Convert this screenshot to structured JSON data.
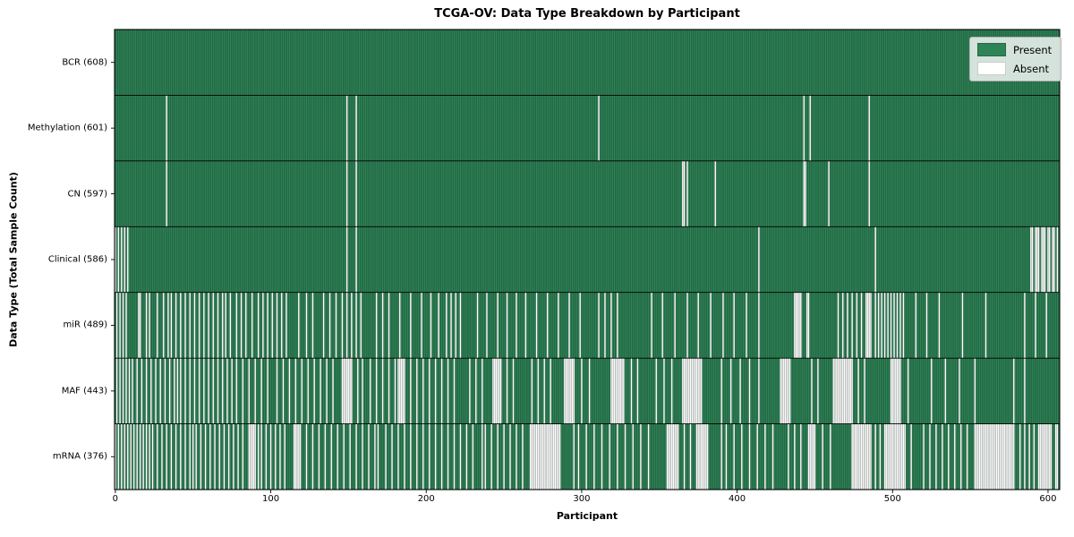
{
  "title": "TCGA-OV: Data Type Breakdown by Participant",
  "xlabel": "Participant",
  "ylabel": "Data Type (Total Sample Count)",
  "legend": {
    "present_label": "Present",
    "absent_label": "Absent"
  },
  "colors": {
    "present": "#2e8457",
    "present_edge_alpha": "rgba(0,0,0,0.38)",
    "absent": "#ffffff",
    "separator": "#000000",
    "spine": "#000000"
  },
  "chart_data": {
    "type": "heatmap",
    "subtype": "presence-absence-matrix",
    "n_participants": 608,
    "x_ticks": [
      0,
      100,
      200,
      300,
      400,
      500,
      600
    ],
    "legend_position": "upper right",
    "grid": "horizontal-row-separators",
    "rows": [
      {
        "label": "BCR (608)",
        "name": "BCR",
        "present_count": 608,
        "absent": []
      },
      {
        "label": "Methylation (601)",
        "name": "Methylation",
        "present_count": 601,
        "absent": [
          33,
          149,
          155,
          311,
          443,
          447,
          485
        ]
      },
      {
        "label": "CN (597)",
        "name": "CN",
        "present_count": 597,
        "absent": [
          33,
          149,
          155,
          365,
          366,
          368,
          386,
          443,
          444,
          459,
          485
        ]
      },
      {
        "label": "Clinical (586)",
        "name": "Clinical",
        "present_count": 586,
        "absent": [
          0,
          2,
          4,
          6,
          8,
          149,
          155,
          414,
          489,
          [
            589,
            590
          ],
          592,
          593,
          594,
          596,
          597,
          598,
          600,
          601,
          603,
          604,
          606
        ]
      },
      {
        "label": "miR (489)",
        "name": "miR",
        "present_count": 489,
        "absent": [
          1,
          3,
          5,
          7,
          15,
          16,
          20,
          22,
          27,
          31,
          34,
          36,
          39,
          42,
          45,
          48,
          51,
          54,
          57,
          60,
          63,
          66,
          69,
          71,
          74,
          78,
          81,
          84,
          88,
          92,
          95,
          98,
          101,
          104,
          107,
          110,
          118,
          123,
          127,
          134,
          138,
          142,
          146,
          149,
          152,
          155,
          158,
          168,
          172,
          176,
          183,
          190,
          197,
          203,
          208,
          213,
          216,
          219,
          222,
          233,
          239,
          246,
          252,
          258,
          264,
          271,
          278,
          285,
          292,
          299,
          311,
          315,
          319,
          323,
          345,
          352,
          360,
          368,
          375,
          383,
          391,
          398,
          406,
          414,
          [
            437,
            441
          ],
          445,
          446,
          465,
          468,
          471,
          474,
          477,
          480,
          [
            483,
            486
          ],
          489,
          491,
          493,
          495,
          497,
          499,
          501,
          503,
          505,
          507,
          515,
          522,
          530,
          545,
          560,
          585,
          592,
          599
        ]
      },
      {
        "label": "MAF (443)",
        "name": "MAF",
        "present_count": 443,
        "absent": [
          1,
          3,
          5,
          7,
          9,
          11,
          14,
          17,
          20,
          23,
          26,
          29,
          32,
          35,
          38,
          40,
          42,
          45,
          48,
          51,
          54,
          57,
          60,
          63,
          66,
          69,
          72,
          75,
          78,
          82,
          86,
          90,
          94,
          98,
          104,
          108,
          112,
          116,
          120,
          124,
          128,
          132,
          136,
          140,
          [
            146,
            152
          ],
          156,
          159,
          164,
          168,
          172,
          176,
          180,
          [
            182,
            186
          ],
          190,
          194,
          198,
          202,
          206,
          210,
          214,
          218,
          228,
          232,
          236,
          [
            243,
            248
          ],
          252,
          256,
          268,
          272,
          276,
          280,
          [
            289,
            295
          ],
          300,
          305,
          [
            319,
            327
          ],
          332,
          336,
          348,
          353,
          358,
          [
            365,
            377
          ],
          390,
          396,
          402,
          408,
          414,
          [
            428,
            434
          ],
          448,
          452,
          [
            462,
            474
          ],
          478,
          482,
          [
            499,
            505
          ],
          510,
          525,
          534,
          543,
          553,
          578,
          585
        ]
      },
      {
        "label": "mRNA (376)",
        "name": "mRNA",
        "present_count": 376,
        "absent": [
          0,
          2,
          4,
          6,
          8,
          10,
          12,
          14,
          16,
          18,
          20,
          22,
          24,
          27,
          30,
          33,
          36,
          39,
          42,
          45,
          48,
          50,
          52,
          55,
          58,
          61,
          64,
          67,
          70,
          73,
          76,
          79,
          82,
          [
            86,
            90
          ],
          92,
          94,
          97,
          100,
          103,
          106,
          109,
          [
            115,
            119
          ],
          123,
          127,
          131,
          135,
          139,
          143,
          147,
          151,
          155,
          159,
          163,
          167,
          169,
          174,
          178,
          182,
          186,
          190,
          194,
          198,
          202,
          206,
          210,
          214,
          218,
          222,
          226,
          230,
          236,
          238,
          242,
          246,
          250,
          254,
          258,
          262,
          [
            267,
            286
          ],
          295,
          298,
          303,
          308,
          313,
          318,
          323,
          328,
          333,
          338,
          343,
          [
            355,
            362
          ],
          366,
          370,
          [
            374,
            381
          ],
          390,
          393,
          398,
          403,
          408,
          413,
          418,
          423,
          433,
          437,
          441,
          [
            446,
            450
          ],
          455,
          460,
          [
            474,
            486
          ],
          489,
          492,
          [
            495,
            508
          ],
          512,
          520,
          524,
          528,
          532,
          536,
          540,
          544,
          548,
          [
            553,
            578
          ],
          582,
          585,
          588,
          591,
          [
            594,
            602
          ],
          605,
          606
        ]
      }
    ]
  }
}
